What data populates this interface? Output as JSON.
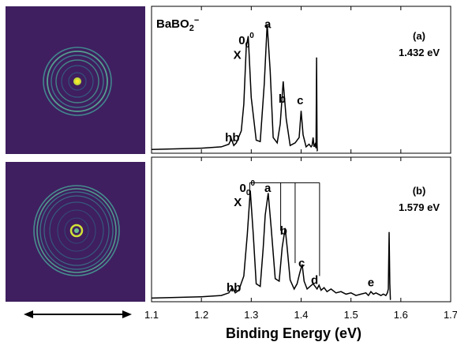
{
  "figure": {
    "species": "BaBO",
    "species_sub": "2",
    "species_sup": "−",
    "double_arrow_icon": "double-headed-arrow"
  },
  "chart_data": {
    "type": "line",
    "xlabel": "Binding Energy (eV)",
    "xlim": [
      1.1,
      1.7
    ],
    "x_ticks": [
      "1.1",
      "1.2",
      "1.3",
      "1.4",
      "1.5",
      "1.6",
      "1.7"
    ],
    "x_tick_values": [
      1.1,
      1.2,
      1.3,
      1.4,
      1.5,
      1.6,
      1.7
    ],
    "ylim": [
      0,
      1
    ],
    "grid": false,
    "panels": [
      {
        "label": "(a)",
        "photon_energy": "1.432 eV",
        "peak_labels": [
          {
            "text": "X",
            "x": 1.272,
            "y": 0.69
          },
          {
            "text": "0",
            "sub": "0",
            "sup": "0",
            "x": 1.29,
            "y": 0.8
          },
          {
            "text": "a",
            "x": 1.333,
            "y": 0.92
          },
          {
            "text": "b",
            "x": 1.362,
            "y": 0.36
          },
          {
            "text": "c",
            "x": 1.398,
            "y": 0.35
          },
          {
            "text": "hb",
            "x": 1.262,
            "y": 0.07
          }
        ],
        "series": [
          {
            "x": [
              1.1,
              1.2,
              1.24,
              1.255,
              1.26,
              1.265,
              1.27,
              1.28,
              1.285,
              1.29,
              1.294,
              1.3,
              1.31,
              1.318,
              1.326,
              1.332,
              1.338,
              1.344,
              1.352,
              1.358,
              1.364,
              1.37,
              1.378,
              1.388,
              1.396,
              1.4,
              1.404,
              1.41,
              1.416,
              1.42,
              1.422,
              1.424,
              1.426,
              1.428,
              1.43,
              1.431,
              1.432,
              1.4325,
              1.433
            ],
            "y": [
              0.01,
              0.02,
              0.03,
              0.05,
              0.09,
              0.04,
              0.06,
              0.15,
              0.35,
              0.78,
              0.86,
              0.4,
              0.08,
              0.07,
              0.5,
              0.95,
              0.6,
              0.1,
              0.06,
              0.2,
              0.52,
              0.24,
              0.04,
              0.06,
              0.1,
              0.3,
              0.12,
              0.03,
              0.05,
              0.03,
              0.04,
              0.1,
              0.03,
              0.05,
              0.02,
              0.7,
              0.05,
              0.0,
              0.0
            ]
          }
        ]
      },
      {
        "label": "(b)",
        "photon_energy": "1.579 eV",
        "peak_labels": [
          {
            "text": "X",
            "x": 1.273,
            "y": 0.72
          },
          {
            "text": "0",
            "sub": "0",
            "sup": "0",
            "x": 1.292,
            "y": 0.83
          },
          {
            "text": "a",
            "x": 1.333,
            "y": 0.83
          },
          {
            "text": "b",
            "x": 1.365,
            "y": 0.5
          },
          {
            "text": "c",
            "x": 1.401,
            "y": 0.25
          },
          {
            "text": "d",
            "x": 1.427,
            "y": 0.12
          },
          {
            "text": "e",
            "x": 1.54,
            "y": 0.1
          },
          {
            "text": "hb",
            "x": 1.265,
            "y": 0.06
          }
        ],
        "bracket": {
          "x_start": 1.297,
          "top_x_end": 1.437,
          "drops": [
            1.359,
            1.388,
            1.437
          ],
          "drop_bottoms": [
            0.53,
            0.28,
            0.18
          ],
          "start_bottom": 0.83,
          "y_top": 0.9
        },
        "series": [
          {
            "x": [
              1.1,
              1.2,
              1.24,
              1.255,
              1.262,
              1.268,
              1.275,
              1.285,
              1.292,
              1.298,
              1.304,
              1.31,
              1.318,
              1.324,
              1.328,
              1.334,
              1.34,
              1.348,
              1.356,
              1.362,
              1.368,
              1.372,
              1.378,
              1.386,
              1.392,
              1.397,
              1.402,
              1.406,
              1.412,
              1.418,
              1.424,
              1.428,
              1.432,
              1.436,
              1.44,
              1.446,
              1.452,
              1.46,
              1.47,
              1.48,
              1.49,
              1.5,
              1.51,
              1.52,
              1.53,
              1.535,
              1.54,
              1.545,
              1.55,
              1.56,
              1.565,
              1.57,
              1.573,
              1.575,
              1.5765,
              1.578,
              1.579,
              1.5795,
              1.58
            ],
            "y": [
              0.01,
              0.02,
              0.03,
              0.05,
              0.09,
              0.05,
              0.07,
              0.18,
              0.5,
              0.84,
              0.5,
              0.12,
              0.1,
              0.4,
              0.65,
              0.82,
              0.55,
              0.16,
              0.14,
              0.4,
              0.55,
              0.4,
              0.15,
              0.08,
              0.12,
              0.2,
              0.27,
              0.14,
              0.08,
              0.1,
              0.12,
              0.1,
              0.08,
              0.11,
              0.07,
              0.09,
              0.06,
              0.08,
              0.05,
              0.06,
              0.04,
              0.05,
              0.03,
              0.04,
              0.05,
              0.03,
              0.06,
              0.04,
              0.05,
              0.03,
              0.04,
              0.03,
              0.05,
              0.08,
              0.52,
              0.12,
              0.0,
              0.0,
              0.0
            ]
          }
        ]
      }
    ]
  }
}
